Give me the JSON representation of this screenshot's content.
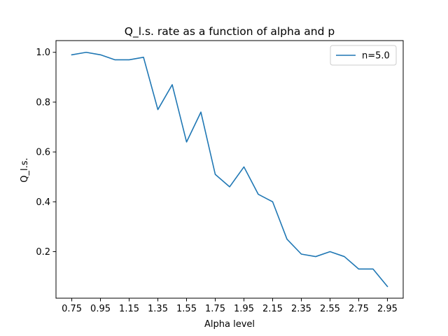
{
  "chart_data": {
    "type": "line",
    "title": "Q_l.s. rate as a function of alpha and p",
    "xlabel": "Alpha level",
    "ylabel": "Q_l.s.",
    "x": [
      0.75,
      0.85,
      0.95,
      1.05,
      1.15,
      1.25,
      1.35,
      1.45,
      1.55,
      1.65,
      1.75,
      1.85,
      1.95,
      2.05,
      2.15,
      2.25,
      2.35,
      2.45,
      2.55,
      2.65,
      2.75,
      2.85,
      2.95
    ],
    "series": [
      {
        "name": "n=5.0",
        "color": "#1f77b4",
        "values": [
          0.99,
          1.0,
          0.99,
          0.97,
          0.97,
          0.98,
          0.77,
          0.87,
          0.64,
          0.76,
          0.51,
          0.46,
          0.54,
          0.43,
          0.4,
          0.25,
          0.19,
          0.18,
          0.2,
          0.18,
          0.13,
          0.13,
          0.06
        ]
      }
    ],
    "xticks": [
      "0.75",
      "0.95",
      "1.15",
      "1.35",
      "1.55",
      "1.75",
      "1.95",
      "2.15",
      "2.35",
      "2.55",
      "2.75",
      "2.95"
    ],
    "yticks": [
      "0.2",
      "0.4",
      "0.6",
      "0.8",
      "1.0"
    ],
    "xlim": [
      0.64,
      3.06
    ],
    "ylim": [
      0.013,
      1.047
    ],
    "legend": "top-right",
    "grid": false
  }
}
